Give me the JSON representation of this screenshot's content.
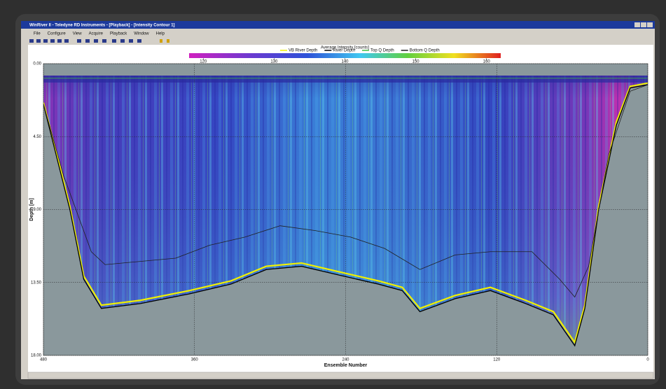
{
  "window": {
    "title": "WinRiver II - Teledyne RD Instruments - [Playback] - [Intensity Contour 1]",
    "menu": [
      "File",
      "Configure",
      "View",
      "Acquire",
      "Playback",
      "Window",
      "Help"
    ]
  },
  "chart_data": {
    "type": "contour",
    "colorbar_title": "Average Intensity [counts]",
    "clim": [
      118,
      162
    ],
    "cticks": [
      120,
      130,
      140,
      150,
      160
    ],
    "xlabel": "Ensemble Number",
    "ylabel": {
      "text": "Depth [m]"
    },
    "xlim": [
      480,
      0
    ],
    "ylim": [
      0,
      18
    ],
    "xticks": [
      480,
      360,
      240,
      120,
      0
    ],
    "yticks": [
      {
        "value": 0,
        "label": "0.00"
      },
      {
        "value": 4.5,
        "label": "4.50"
      },
      {
        "value": 9,
        "label": "9.00"
      },
      {
        "value": 13.5,
        "label": "13.50"
      },
      {
        "value": 18,
        "label": "18.00"
      }
    ],
    "grid": true,
    "series": [
      {
        "name": "VB River Depth",
        "color": "#f0f000",
        "x": [
          480,
          470,
          459,
          448,
          434,
          403,
          364,
          331,
          303,
          275,
          242,
          214,
          195,
          181,
          153,
          125,
          97,
          75,
          58,
          50,
          39,
          25,
          14,
          0
        ],
        "values": [
          2.4,
          5.4,
          8.8,
          13.1,
          14.9,
          14.6,
          14.0,
          13.4,
          12.5,
          12.3,
          12.9,
          13.4,
          13.8,
          15.1,
          14.3,
          13.8,
          14.6,
          15.3,
          17.2,
          14.9,
          8.8,
          3.6,
          1.4,
          1.2
        ]
      },
      {
        "name": "River Depth",
        "color": "#000000",
        "x": [
          480,
          470,
          459,
          448,
          434,
          403,
          364,
          331,
          303,
          275,
          242,
          214,
          195,
          181,
          153,
          125,
          97,
          75,
          58,
          50,
          39,
          25,
          14,
          0
        ],
        "values": [
          2.5,
          5.6,
          9.0,
          13.3,
          15.1,
          14.8,
          14.2,
          13.6,
          12.7,
          12.5,
          13.1,
          13.6,
          14.0,
          15.3,
          14.5,
          14.0,
          14.8,
          15.5,
          17.4,
          15.1,
          9.0,
          3.8,
          1.5,
          1.3
        ]
      },
      {
        "name": "Top Q Depth",
        "color": "#40c040",
        "x": [
          480,
          0
        ],
        "values": [
          0.9,
          0.9
        ]
      },
      {
        "name": "Bottom Q Depth",
        "color": "#202020",
        "x": [
          480,
          464,
          442,
          431,
          375,
          348,
          320,
          292,
          264,
          236,
          209,
          181,
          153,
          125,
          92,
          70,
          58,
          47,
          31,
          14,
          0
        ],
        "values": [
          2.5,
          6.9,
          11.6,
          12.4,
          12.0,
          11.2,
          10.7,
          10.0,
          10.3,
          10.7,
          11.4,
          12.7,
          11.8,
          11.6,
          11.6,
          13.3,
          14.4,
          12.5,
          5.6,
          1.7,
          1.3
        ]
      }
    ]
  }
}
